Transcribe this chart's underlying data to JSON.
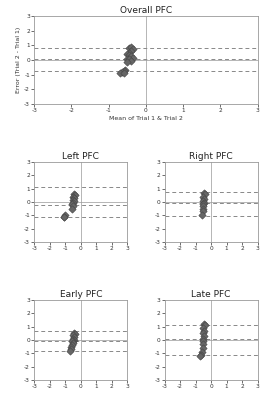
{
  "overall_pfc": {
    "title": "Overall PFC",
    "x": [
      -0.45,
      -0.4,
      -0.35,
      -0.4,
      -0.45,
      -0.5,
      -0.45,
      -0.4,
      -0.35,
      -0.5,
      -0.45,
      -0.4,
      -0.5,
      -0.55,
      -0.6,
      -0.65,
      -0.7,
      -0.6
    ],
    "y": [
      0.8,
      0.9,
      0.75,
      0.6,
      0.5,
      0.4,
      0.35,
      0.25,
      0.15,
      0.05,
      0.1,
      -0.05,
      -0.15,
      -0.7,
      -0.75,
      -0.8,
      -0.85,
      -0.9
    ],
    "mean_line": 0.05,
    "upper_line": 0.85,
    "lower_line": -0.75
  },
  "left_pfc": {
    "title": "Left PFC",
    "x": [
      -0.45,
      -0.4,
      -0.5,
      -0.45,
      -0.5,
      -0.45,
      -0.5,
      -0.55,
      -0.5,
      -0.55,
      -1.0,
      -1.05,
      -1.1
    ],
    "y": [
      0.6,
      0.5,
      0.4,
      0.3,
      0.15,
      0.05,
      -0.05,
      -0.15,
      -0.3,
      -0.5,
      -1.0,
      -1.1,
      -1.15
    ],
    "mean_line": -0.25,
    "upper_line": 1.1,
    "lower_line": -1.1
  },
  "right_pfc": {
    "title": "Right PFC",
    "x": [
      -0.45,
      -0.4,
      -0.5,
      -0.45,
      -0.5,
      -0.45,
      -0.5,
      -0.55,
      -0.5,
      -0.55,
      -0.6
    ],
    "y": [
      0.7,
      0.6,
      0.4,
      0.2,
      0.05,
      -0.05,
      -0.15,
      -0.3,
      -0.5,
      -0.7,
      -1.0
    ],
    "mean_line": -0.1,
    "upper_line": 0.75,
    "lower_line": -1.05
  },
  "early_pfc": {
    "title": "Early PFC",
    "x": [
      -0.45,
      -0.4,
      -0.5,
      -0.45,
      -0.5,
      -0.45,
      -0.5,
      -0.55,
      -0.5,
      -0.55,
      -0.6,
      -0.65,
      -0.7
    ],
    "y": [
      0.5,
      0.45,
      0.35,
      0.2,
      0.1,
      0.0,
      -0.05,
      -0.1,
      -0.2,
      -0.35,
      -0.5,
      -0.7,
      -0.8
    ],
    "mean_line": -0.05,
    "upper_line": 0.65,
    "lower_line": -0.8
  },
  "late_pfc": {
    "title": "Late PFC",
    "x": [
      -0.45,
      -0.4,
      -0.5,
      -0.45,
      -0.5,
      -0.45,
      -0.5,
      -0.55,
      -0.5,
      -0.55,
      -0.6,
      -0.65,
      -0.7
    ],
    "y": [
      1.2,
      1.1,
      0.9,
      0.7,
      0.5,
      0.3,
      0.1,
      -0.1,
      -0.3,
      -0.6,
      -0.9,
      -1.1,
      -1.2
    ],
    "mean_line": 0.05,
    "upper_line": 1.1,
    "lower_line": -1.1
  },
  "marker_color": "#666666",
  "marker_size": 14,
  "marker_edge_color": "#444444",
  "dashed_color": "#888888",
  "background": "#ffffff",
  "xlabel": "Mean of Trial 1 & Trial 2",
  "ylabel": "Error (Trial 2 - Trial 1)",
  "xlim": [
    -3,
    3
  ],
  "ylim": [
    -3,
    3
  ],
  "xticks": [
    -3,
    -2,
    -1,
    0,
    1,
    2,
    3
  ],
  "yticks": [
    -3,
    -2,
    -1,
    0,
    1,
    2,
    3
  ]
}
